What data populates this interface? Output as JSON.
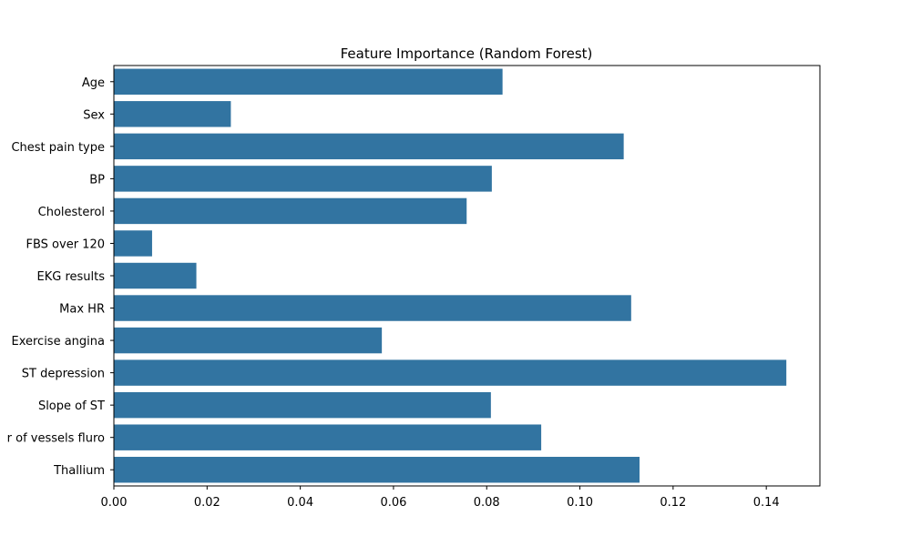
{
  "chart_data": {
    "type": "bar",
    "orientation": "horizontal",
    "title": "Feature Importance (Random Forest)",
    "xlabel": "",
    "ylabel": "",
    "categories": [
      "Age",
      "Sex",
      "Chest pain type",
      "BP",
      "Cholesterol",
      "FBS over 120",
      "EKG results",
      "Max HR",
      "Exercise angina",
      "ST depression",
      "Slope of ST",
      "r of vessels fluro",
      "Thallium"
    ],
    "values": [
      0.0834,
      0.0251,
      0.1094,
      0.0811,
      0.0757,
      0.0082,
      0.0177,
      0.111,
      0.0575,
      0.1443,
      0.0809,
      0.0917,
      0.1128
    ],
    "xlim": [
      0,
      0.1515
    ],
    "xticks": [
      0.0,
      0.02,
      0.04,
      0.06,
      0.08,
      0.1,
      0.12,
      0.14
    ],
    "xtick_labels": [
      "0.00",
      "0.02",
      "0.04",
      "0.06",
      "0.08",
      "0.10",
      "0.12",
      "0.14"
    ],
    "bar_color": "#3274a1",
    "grid": false,
    "legend": "none"
  }
}
